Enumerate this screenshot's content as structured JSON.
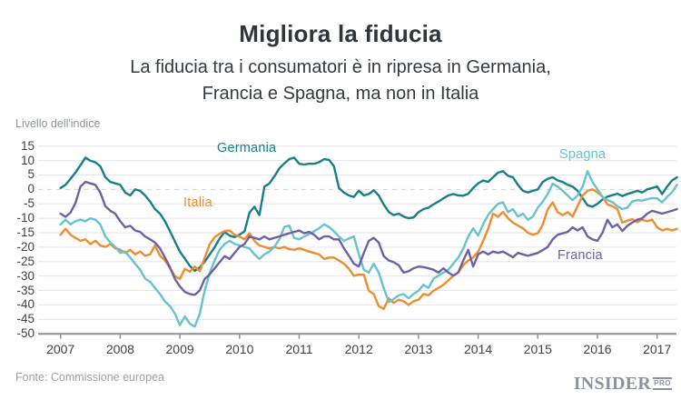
{
  "header": {
    "title": "Migliora la fiducia",
    "subtitle1": "La fiducia tra i consumatori è in ripresa in Germania,",
    "subtitle2": "Francia e Spagna, ma non in Italia"
  },
  "axis": {
    "unit_label": "Livello dell'indice",
    "y_ticks": [
      15,
      10,
      5,
      0,
      -5,
      -10,
      -15,
      -20,
      -25,
      -30,
      -35,
      -40,
      -45,
      -50
    ],
    "x_ticks": [
      2007,
      2008,
      2009,
      2010,
      2011,
      2012,
      2013,
      2014,
      2015,
      2016,
      2017
    ]
  },
  "footer": {
    "source": "Fonte: Commissione europea",
    "logo_main": "INSIDER",
    "logo_sub": "PRO"
  },
  "colors": {
    "germania": "#177e8a",
    "italia": "#ef8c2d",
    "spagna": "#66c2cf",
    "francia": "#6f5fa7",
    "gridline": "#e5e5e5",
    "zero_line": "#d2d2d2",
    "axis_line": "#8f8f8f"
  },
  "chart_data": {
    "type": "line",
    "title": "Migliora la fiducia",
    "xlabel": "",
    "ylabel": "Livello dell'indice",
    "ylim": [
      -50,
      15
    ],
    "x_start": "2007-01",
    "x_end": "2017-05",
    "frequency": "monthly",
    "grid": "horizontal",
    "legend_position": "inline-labels",
    "series": [
      {
        "name": "Germania",
        "color": "#177e8a",
        "values": [
          0.5,
          1.6,
          3.7,
          5.8,
          8.4,
          11,
          9.9,
          9.4,
          8,
          4.2,
          2.6,
          2.1,
          1.6,
          -1.1,
          -2.1,
          0,
          -0.5,
          -2.1,
          -4.2,
          -6.8,
          -8.4,
          -11,
          -14.5,
          -18,
          -21.5,
          -24,
          -26.5,
          -28.2,
          -27,
          -25,
          -22.5,
          -20,
          -17,
          -14.7,
          -16,
          -16.5,
          -15.7,
          -14.5,
          -8,
          -6,
          -8.9,
          1,
          2.1,
          4.5,
          7.3,
          9,
          10.5,
          11,
          8.9,
          8.6,
          8.9,
          8.9,
          9.4,
          10.5,
          10.2,
          8,
          0.5,
          -1.1,
          -2.1,
          -2.6,
          -0.5,
          -2.1,
          -1.6,
          -0.3,
          -2.1,
          -5.2,
          -7.8,
          -8.9,
          -8.4,
          -9.4,
          -10,
          -9.7,
          -7.9,
          -6.8,
          -6.3,
          -5.2,
          -4.2,
          -3.1,
          -2.1,
          -1.6,
          -2.1,
          -2.2,
          -1.5,
          0.5,
          2.1,
          3.1,
          2.6,
          4.2,
          5.8,
          6.3,
          4.7,
          4.2,
          1.6,
          -0.5,
          -1.1,
          -0.5,
          0,
          2.6,
          3.7,
          4.2,
          3.1,
          2.6,
          1.6,
          1,
          -0.5,
          -3,
          -5.5,
          -6,
          -5,
          -3.5,
          -2.5,
          -2,
          -1.5,
          -2.3,
          -1.6,
          -1.1,
          -0.5,
          -1.1,
          0,
          0.5,
          1,
          -1.6,
          1,
          3.1,
          4.2
        ]
      },
      {
        "name": "Italia",
        "color": "#ef8c2d",
        "values": [
          -15.7,
          -13.6,
          -15.7,
          -16.8,
          -17.8,
          -17.3,
          -18.9,
          -17.8,
          -19.4,
          -19.9,
          -18.9,
          -20.4,
          -20.9,
          -22,
          -20.9,
          -22.5,
          -21.5,
          -23,
          -22.5,
          -19.4,
          -23,
          -24.6,
          -27.3,
          -30,
          -31,
          -27.5,
          -28.5,
          -26.7,
          -28.3,
          -23.6,
          -18.9,
          -16.5,
          -15.3,
          -14.4,
          -14.2,
          -15.7,
          -16.3,
          -17.3,
          -15.2,
          -17.8,
          -19.4,
          -19.9,
          -20.4,
          -19.9,
          -20.4,
          -19.9,
          -20.7,
          -20.9,
          -20.4,
          -20.9,
          -21.5,
          -22,
          -22.5,
          -24.1,
          -23.6,
          -23.6,
          -24.6,
          -25.7,
          -27.5,
          -29.9,
          -29.5,
          -29.5,
          -35.1,
          -36.2,
          -40.4,
          -41.4,
          -37.7,
          -39.3,
          -38.2,
          -38.7,
          -40,
          -38.7,
          -38.2,
          -36.2,
          -36.7,
          -35.1,
          -34.1,
          -33,
          -31.5,
          -29.9,
          -28.8,
          -26.2,
          -24.6,
          -23.6,
          -21.5,
          -17.8,
          -13.6,
          -8.4,
          -9.5,
          -7.8,
          -10,
          -11.5,
          -12.5,
          -13.5,
          -15,
          -15.7,
          -15.2,
          -12.1,
          -6.8,
          -4.5,
          -7.9,
          -8.9,
          -7.9,
          -9.4,
          -5.8,
          -2.1,
          -0.5,
          0,
          -1,
          -2.5,
          -5.2,
          -5.8,
          -6.8,
          -11.5,
          -10.8,
          -10.3,
          -11.3,
          -10.5,
          -11,
          -10.5,
          -13.1,
          -14.2,
          -13.6,
          -14.2,
          -13.6
        ]
      },
      {
        "name": "Spagna",
        "color": "#66c2cf",
        "values": [
          -12.1,
          -10.5,
          -12.1,
          -11,
          -10.5,
          -11,
          -10,
          -10.5,
          -12.1,
          -16.3,
          -18.4,
          -19.9,
          -22,
          -21.5,
          -23.6,
          -25.7,
          -27.8,
          -30.9,
          -32,
          -34.1,
          -36.2,
          -38.8,
          -40.4,
          -43,
          -47,
          -44,
          -46.5,
          -47.5,
          -43,
          -35,
          -28.8,
          -24.6,
          -20.9,
          -18.9,
          -17.8,
          -18.9,
          -19.4,
          -19.9,
          -20.4,
          -22.5,
          -24.1,
          -22.5,
          -21.5,
          -19.9,
          -17.3,
          -13,
          -12.5,
          -16.8,
          -17.3,
          -16.3,
          -15.5,
          -14.5,
          -13.5,
          -12.1,
          -13,
          -14.5,
          -16.3,
          -17.8,
          -17,
          -16.3,
          -22.5,
          -27.8,
          -28.8,
          -25.7,
          -28.8,
          -34.1,
          -39,
          -38,
          -36.7,
          -36.2,
          -37.7,
          -36.2,
          -35.1,
          -33,
          -34.1,
          -31,
          -29.9,
          -28.8,
          -27.8,
          -25.7,
          -23.6,
          -20.5,
          -16.3,
          -13.5,
          -16,
          -12,
          -8.9,
          -6.8,
          -5,
          -4.5,
          -7.9,
          -6.8,
          -9.4,
          -8.4,
          -10.5,
          -9.4,
          -6.3,
          -4.2,
          -1.5,
          2,
          1,
          -0.5,
          -2.1,
          -3.7,
          -2.1,
          1,
          6.3,
          2.6,
          0,
          -2.6,
          -3.7,
          -4.4,
          -5.8,
          -6.8,
          -6.3,
          -4.2,
          -3.7,
          -3.9,
          -3.4,
          -3,
          -3.1,
          -4.5,
          -2.6,
          -1,
          1.6
        ]
      },
      {
        "name": "Francia",
        "color": "#6f5fa7",
        "values": [
          -8.4,
          -9.5,
          -8,
          -4.7,
          1,
          2.6,
          2.1,
          1.6,
          -1.1,
          -5.8,
          -7.4,
          -8.4,
          -11,
          -13.1,
          -12.6,
          -14.2,
          -14.7,
          -16.3,
          -17.3,
          -18.4,
          -20.4,
          -23.6,
          -27,
          -31,
          -33.6,
          -35.5,
          -36.2,
          -36.5,
          -35,
          -31,
          -29.4,
          -27.3,
          -25.2,
          -23.1,
          -24.1,
          -22,
          -19.9,
          -18.9,
          -16.3,
          -16.8,
          -17.3,
          -16.3,
          -17.3,
          -16.8,
          -16.3,
          -15.7,
          -15.2,
          -14.7,
          -14.2,
          -15.2,
          -14.7,
          -15.7,
          -17.3,
          -16.3,
          -16.3,
          -17.3,
          -17.3,
          -20.4,
          -23,
          -25.7,
          -26.7,
          -22,
          -17.8,
          -16.8,
          -18.4,
          -23.1,
          -24.6,
          -25.2,
          -26.2,
          -28.8,
          -28.3,
          -27.3,
          -26.7,
          -26.9,
          -27.3,
          -27.8,
          -28.8,
          -27.3,
          -28.8,
          -29.9,
          -28.8,
          -24.6,
          -20.9,
          -26.7,
          -22.5,
          -21.5,
          -22.5,
          -21.5,
          -22,
          -21.5,
          -22.5,
          -23.5,
          -22,
          -22.5,
          -23,
          -22.5,
          -22,
          -21,
          -19.9,
          -17.3,
          -15.7,
          -15.2,
          -14.7,
          -13.1,
          -14.2,
          -13.1,
          -16.3,
          -17.3,
          -17.8,
          -15,
          -10.5,
          -13.1,
          -12.1,
          -14.4,
          -12.6,
          -11.5,
          -10.5,
          -10,
          -8.4,
          -7.4,
          -7.9,
          -8.4,
          -7.9,
          -7.4,
          -6.8
        ]
      }
    ]
  }
}
